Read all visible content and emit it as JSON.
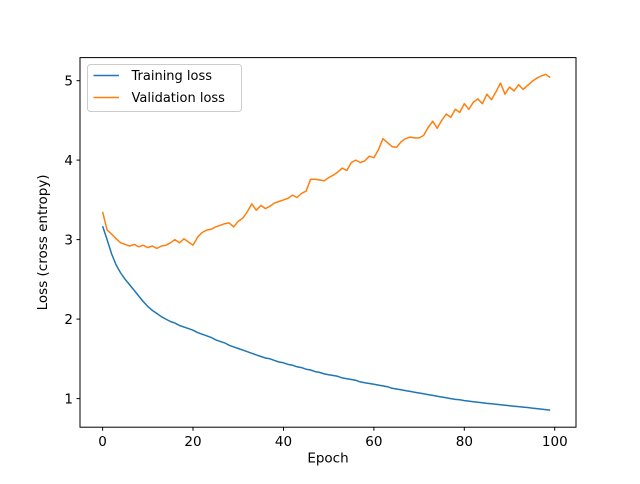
{
  "figure": {
    "background_color": "#ffffff",
    "frame_color": "#000000",
    "text_color": "#000000",
    "legend_border_color": "#cccccc"
  },
  "chart_data": {
    "type": "line",
    "title": "",
    "xlabel": "Epoch",
    "ylabel": "Loss (cross entropy)",
    "xlim": [
      -5,
      104.7
    ],
    "ylim": [
      0.64,
      5.29
    ],
    "xticks": [
      0,
      20,
      40,
      60,
      80,
      100
    ],
    "yticks": [
      1,
      2,
      3,
      4,
      5
    ],
    "grid": false,
    "legend_position": "upper-left",
    "x_start": 0,
    "x_step": 1,
    "series": [
      {
        "name": "Training loss",
        "color": "#1f77b4",
        "values": [
          3.17,
          3.0,
          2.82,
          2.68,
          2.58,
          2.5,
          2.43,
          2.36,
          2.29,
          2.22,
          2.16,
          2.11,
          2.07,
          2.03,
          2.0,
          1.97,
          1.95,
          1.92,
          1.9,
          1.88,
          1.86,
          1.83,
          1.81,
          1.79,
          1.77,
          1.74,
          1.72,
          1.7,
          1.67,
          1.65,
          1.63,
          1.61,
          1.59,
          1.57,
          1.55,
          1.53,
          1.51,
          1.5,
          1.48,
          1.46,
          1.45,
          1.43,
          1.42,
          1.4,
          1.39,
          1.37,
          1.36,
          1.34,
          1.33,
          1.31,
          1.3,
          1.29,
          1.28,
          1.26,
          1.25,
          1.24,
          1.23,
          1.21,
          1.2,
          1.19,
          1.18,
          1.17,
          1.16,
          1.15,
          1.13,
          1.12,
          1.11,
          1.1,
          1.09,
          1.08,
          1.07,
          1.06,
          1.05,
          1.04,
          1.03,
          1.02,
          1.01,
          1.0,
          0.99,
          0.985,
          0.975,
          0.968,
          0.961,
          0.954,
          0.947,
          0.94,
          0.934,
          0.928,
          0.922,
          0.916,
          0.91,
          0.904,
          0.899,
          0.893,
          0.888,
          0.88,
          0.874,
          0.868,
          0.862,
          0.855
        ]
      },
      {
        "name": "Validation loss",
        "color": "#ff7f0e",
        "values": [
          3.35,
          3.12,
          3.07,
          3.01,
          2.96,
          2.94,
          2.92,
          2.94,
          2.91,
          2.93,
          2.9,
          2.92,
          2.89,
          2.92,
          2.93,
          2.96,
          3.0,
          2.96,
          3.01,
          2.97,
          2.93,
          3.03,
          3.09,
          3.12,
          3.13,
          3.16,
          3.18,
          3.2,
          3.21,
          3.16,
          3.23,
          3.27,
          3.35,
          3.45,
          3.37,
          3.43,
          3.39,
          3.42,
          3.46,
          3.48,
          3.5,
          3.52,
          3.56,
          3.53,
          3.58,
          3.61,
          3.76,
          3.76,
          3.75,
          3.74,
          3.78,
          3.81,
          3.85,
          3.9,
          3.87,
          3.97,
          4.0,
          3.97,
          3.99,
          4.05,
          4.03,
          4.13,
          4.27,
          4.22,
          4.17,
          4.16,
          4.23,
          4.27,
          4.29,
          4.28,
          4.28,
          4.31,
          4.41,
          4.49,
          4.4,
          4.5,
          4.58,
          4.54,
          4.64,
          4.6,
          4.71,
          4.64,
          4.73,
          4.77,
          4.71,
          4.83,
          4.76,
          4.86,
          4.97,
          4.83,
          4.92,
          4.87,
          4.95,
          4.89,
          4.94,
          4.99,
          5.03,
          5.06,
          5.08,
          5.04
        ]
      }
    ]
  }
}
